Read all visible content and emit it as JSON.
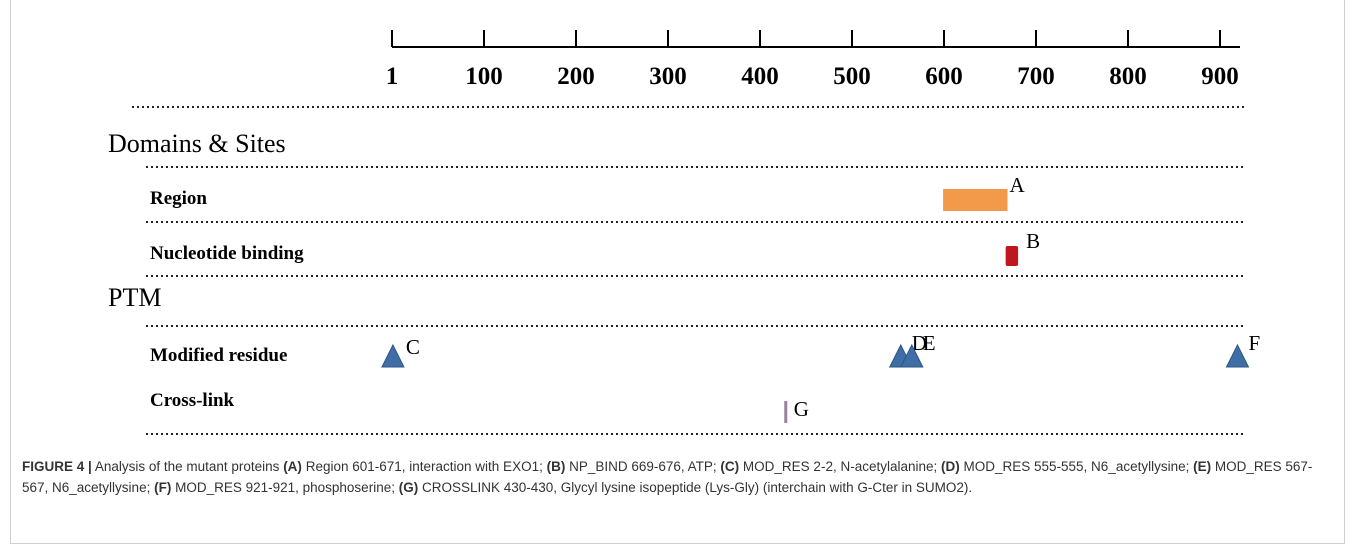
{
  "axis": {
    "ticks": [
      "1",
      "100",
      "200",
      "300",
      "400",
      "500",
      "600",
      "700",
      "800",
      "900"
    ],
    "start": 1,
    "step": 100,
    "end": 921
  },
  "sections": [
    {
      "key": "domains",
      "title": "Domains & Sites"
    },
    {
      "key": "ptm",
      "title": "PTM"
    }
  ],
  "tracks": [
    {
      "key": "region",
      "label": "Region"
    },
    {
      "key": "nucleotide",
      "label": "Nucleotide binding"
    },
    {
      "key": "modified",
      "label": "Modified residue"
    },
    {
      "key": "crosslink",
      "label": "Cross-link"
    }
  ],
  "features": [
    {
      "letter": "A",
      "track": "region",
      "shape": "bar",
      "start": 601,
      "end": 671,
      "color": "#f29a4a"
    },
    {
      "letter": "B",
      "track": "nucleotide",
      "shape": "rect",
      "start": 669,
      "end": 676,
      "color": "#c0171f"
    },
    {
      "letter": "C",
      "track": "modified",
      "shape": "triangle",
      "start": 2,
      "end": 2,
      "color": "#3f6ea6"
    },
    {
      "letter": "D",
      "track": "modified",
      "shape": "triangle",
      "start": 555,
      "end": 555,
      "color": "#3f6ea6"
    },
    {
      "letter": "E",
      "track": "modified",
      "shape": "triangle",
      "start": 567,
      "end": 567,
      "color": "#3f6ea6"
    },
    {
      "letter": "F",
      "track": "modified",
      "shape": "triangle",
      "start": 921,
      "end": 921,
      "color": "#3f6ea6"
    },
    {
      "letter": "G",
      "track": "crosslink",
      "shape": "line",
      "start": 430,
      "end": 430,
      "color": "#9b7fa0"
    }
  ],
  "caption": {
    "figure_label": "FIGURE 4 |",
    "intro": "Analysis of the mutant proteins",
    "items": [
      {
        "tag": "(A)",
        "text": "Region 601-671, interaction with EXO1;"
      },
      {
        "tag": "(B)",
        "text": "NP_BIND 669-676, ATP;"
      },
      {
        "tag": "(C)",
        "text": "MOD_RES 2-2, N-acetylalanine;"
      },
      {
        "tag": "(D)",
        "text": "MOD_RES 555-555, N6_acetyllysine;"
      },
      {
        "tag": "(E)",
        "text": "MOD_RES 567-567, N6_acetyllysine;"
      },
      {
        "tag": "(F)",
        "text": "MOD_RES 921-921, phosphoserine;"
      },
      {
        "tag": "(G)",
        "text": "CROSSLINK 430-430, Glycyl lysine isopeptide (Lys-Gly) (interchain with G-Cter in SUMO2)."
      }
    ]
  }
}
